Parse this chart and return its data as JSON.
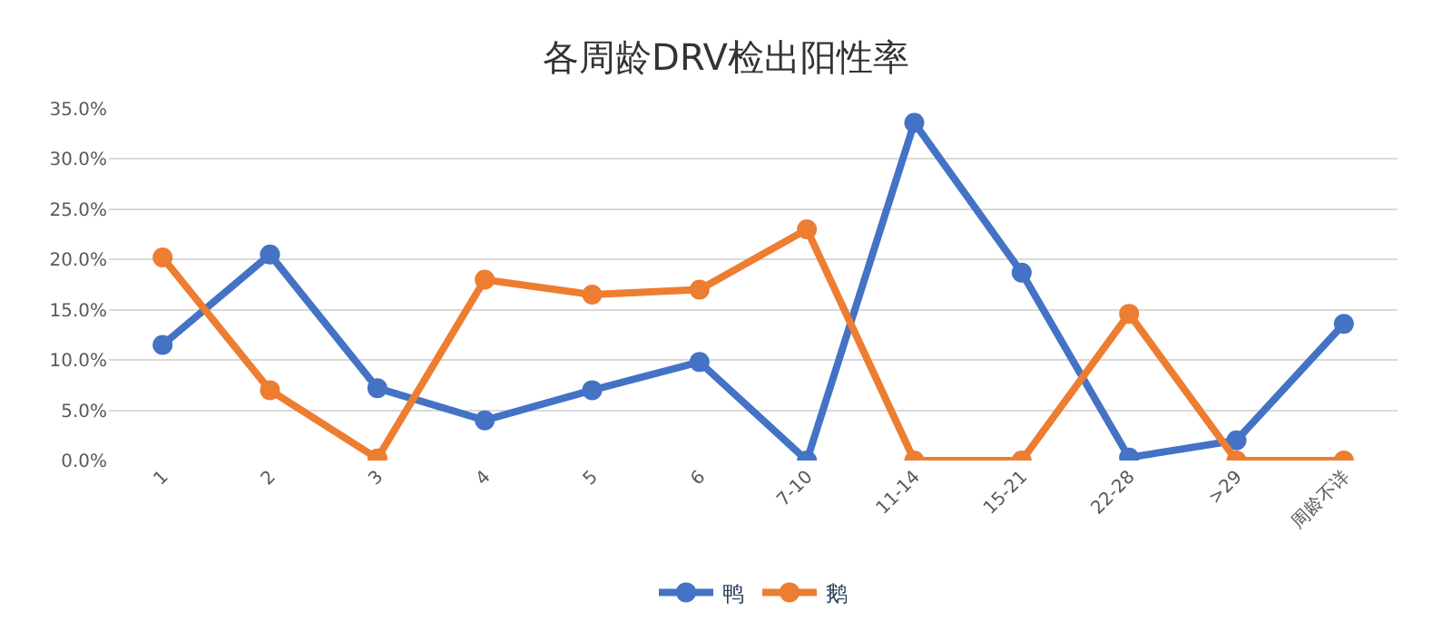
{
  "chart_data": {
    "type": "line",
    "title": "各周龄DRV检出阳性率",
    "categories": [
      "1",
      "2",
      "3",
      "4",
      "5",
      "6",
      "7-10",
      "11-14",
      "15-21",
      "22-28",
      ">29",
      "周龄不详"
    ],
    "series": [
      {
        "name": "鸭",
        "color": "#4472c4",
        "values": [
          11.5,
          20.5,
          7.2,
          4.0,
          7.0,
          9.8,
          0.0,
          33.6,
          18.7,
          0.3,
          2.0,
          13.6
        ]
      },
      {
        "name": "鹅",
        "color": "#ed7d31",
        "values": [
          20.2,
          7.0,
          0.2,
          18.0,
          16.5,
          17.0,
          23.0,
          0.0,
          0.0,
          14.6,
          0.0,
          0.0
        ]
      }
    ],
    "ylim": [
      0,
      35
    ],
    "yticks": [
      {
        "value": 0,
        "label": "0.0%"
      },
      {
        "value": 5,
        "label": "5.0%"
      },
      {
        "value": 10,
        "label": "10.0%"
      },
      {
        "value": 15,
        "label": "15.0%"
      },
      {
        "value": 20,
        "label": "20.0%"
      },
      {
        "value": 25,
        "label": "25.0%"
      },
      {
        "value": 30,
        "label": "30.0%"
      },
      {
        "value": 35,
        "label": "35.0%"
      }
    ],
    "grid": "y",
    "legend": "bottom",
    "marker": "circle",
    "line_style": "solid"
  }
}
